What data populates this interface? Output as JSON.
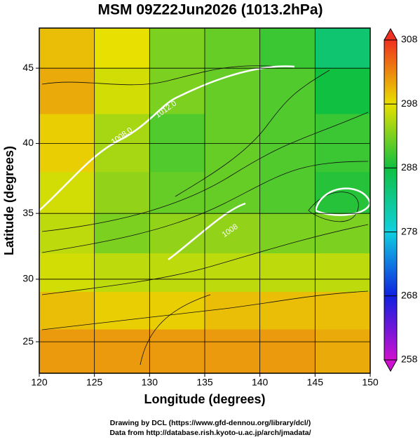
{
  "chart_data": {
    "type": "map",
    "title": "MSM 09Z22Jun2026 (1013.2hPa)",
    "xlabel": "Longitude (degrees)",
    "ylabel": "Latitude  (degrees)",
    "projection": "mercator",
    "xlim": [
      120,
      150
    ],
    "ylim": [
      22.4,
      47.5
    ],
    "xticks": [
      120,
      125,
      130,
      135,
      140,
      145,
      150
    ],
    "yticks": [
      25,
      30,
      35,
      40,
      45
    ],
    "grid": true,
    "field": {
      "lon_edges": [
        120,
        125,
        130,
        135,
        140,
        145,
        150
      ],
      "lat_edges": [
        47.5,
        45,
        42,
        38,
        35,
        32,
        29,
        26,
        22.4
      ],
      "values": [
        [
          300,
          298,
          293,
          292,
          290,
          285
        ],
        [
          301,
          297,
          293,
          292,
          291,
          288
        ],
        [
          299,
          295,
          291,
          292,
          291,
          290
        ],
        [
          297,
          294,
          292,
          292,
          291,
          289
        ],
        [
          296,
          293,
          294,
          294,
          293,
          293
        ],
        [
          297,
          296,
          296,
          296,
          296,
          296
        ],
        [
          300,
          299,
          299,
          300,
          300,
          300
        ],
        [
          302,
          302,
          302,
          302,
          302,
          301
        ]
      ]
    },
    "colorbar": {
      "ticks": [
        258,
        268,
        278,
        288,
        298,
        308
      ],
      "colors": [
        "#d010d0",
        "#1020e0",
        "#10d0e0",
        "#10c040",
        "#e8e000",
        "#f03020"
      ]
    },
    "annotations": [
      {
        "text": "1008.0",
        "lon": 127.5,
        "lat": 40.5
      },
      {
        "text": "1012.0",
        "lon": 131.5,
        "lat": 42.3
      },
      {
        "text": "1008",
        "lon": 137.3,
        "lat": 33.7
      }
    ],
    "credits": [
      "Drawing by DCL (https://www.gfd-dennou.org/library/dcl/)",
      "Data from http://database.rish.kyoto-u.ac.jp/arch/jmadata/"
    ]
  }
}
